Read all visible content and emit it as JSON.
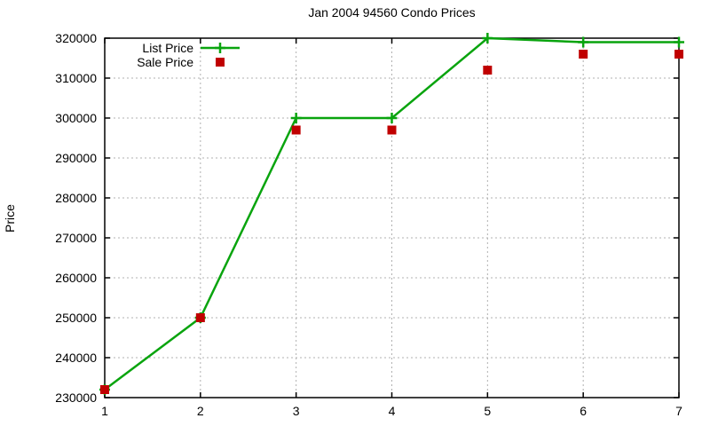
{
  "title": "Jan 2004 94560 Condo Prices",
  "colors": {
    "list_price": "#09a40e",
    "sale_price": "#c00000",
    "grid": "#b0b0b0",
    "axis": "#000000",
    "background": "#ffffff"
  },
  "chart_data": {
    "type": "line",
    "title": "Jan 2004 94560 Condo Prices",
    "xlabel": "",
    "ylabel": "Price",
    "x": [
      1,
      2,
      3,
      4,
      5,
      6,
      7
    ],
    "series": [
      {
        "name": "List Price",
        "values": [
          232000,
          250000,
          300000,
          300000,
          320000,
          319000,
          319000
        ],
        "color": "#09a40e",
        "line": true,
        "marker": "plus"
      },
      {
        "name": "Sale Price",
        "values": [
          232000,
          250000,
          297000,
          297000,
          312000,
          316000,
          316000
        ],
        "color": "#c00000",
        "line": false,
        "marker": "square"
      }
    ],
    "xlim": [
      1,
      7
    ],
    "ylim": [
      230000,
      320000
    ],
    "xticks": [
      1,
      2,
      3,
      4,
      5,
      6,
      7
    ],
    "yticks": [
      230000,
      240000,
      250000,
      260000,
      270000,
      280000,
      290000,
      300000,
      310000,
      320000
    ],
    "grid": true,
    "legend_position": "inside-top-left"
  }
}
